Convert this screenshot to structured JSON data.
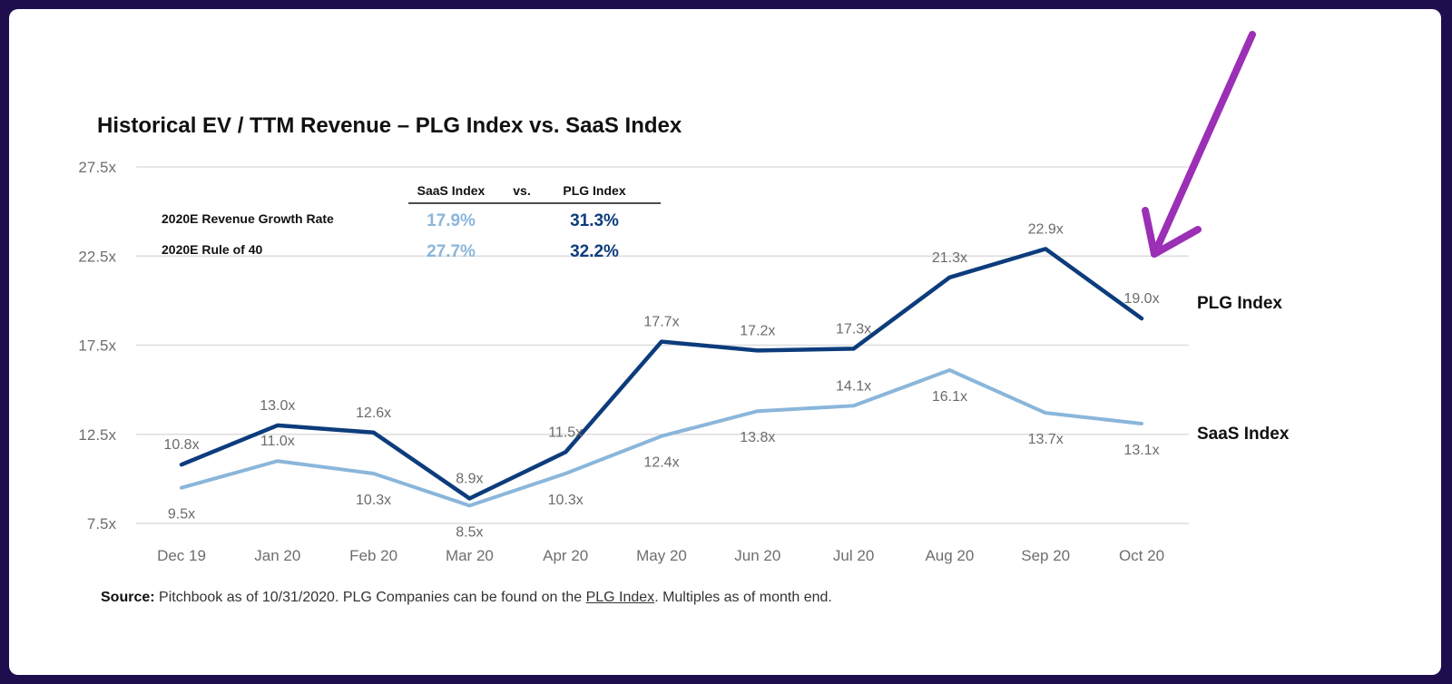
{
  "chart_data": {
    "type": "line",
    "title": "Historical EV / TTM Revenue – PLG Index vs. SaaS Index",
    "categories": [
      "Dec 19",
      "Jan 20",
      "Feb 20",
      "Mar 20",
      "Apr 20",
      "May 20",
      "Jun 20",
      "Jul 20",
      "Aug 20",
      "Sep 20",
      "Oct 20"
    ],
    "y_ticks": [
      "7.5x",
      "12.5x",
      "17.5x",
      "22.5x",
      "27.5x"
    ],
    "ylim": [
      7.5,
      27.5
    ],
    "grid": true,
    "legend": "right",
    "series": [
      {
        "name": "PLG Index",
        "color": "#0d3c7c",
        "values": [
          10.8,
          13.0,
          12.6,
          8.9,
          11.5,
          17.7,
          17.2,
          17.3,
          21.3,
          22.9,
          19.0
        ],
        "labels": [
          "10.8x",
          "13.0x",
          "12.6x",
          "8.9x",
          "11.5x",
          "17.7x",
          "17.2x",
          "17.3x",
          "21.3x",
          "22.9x",
          "19.0x"
        ]
      },
      {
        "name": "SaaS Index",
        "color": "#8ab6da",
        "values": [
          9.5,
          11.0,
          10.3,
          8.5,
          10.3,
          12.4,
          13.8,
          14.1,
          16.1,
          13.7,
          13.1
        ],
        "labels": [
          "9.5x",
          "11.0x",
          "10.3x",
          "8.5x",
          "10.3x",
          "12.4x",
          "13.8x",
          "14.1x",
          "16.1x",
          "13.7x",
          "13.1x"
        ]
      }
    ],
    "table": {
      "headers": [
        "SaaS Index",
        "vs.",
        "PLG Index"
      ],
      "rows": [
        {
          "label": "2020E Revenue Growth Rate",
          "saas": "17.9%",
          "plg": "31.3%"
        },
        {
          "label": "2020E Rule of 40",
          "saas": "27.7%",
          "plg": "32.2%"
        }
      ]
    }
  },
  "annotation": {
    "arrow_color": "#9b2fb5"
  },
  "source": {
    "bold": "Source:",
    "pre": " Pitchbook as of 10/31/2020. PLG Companies can be found on the ",
    "link": "PLG Index",
    "post": ". Multiples as of month end."
  },
  "colors": {
    "background": "#1f0e4e",
    "panel": "#ffffff",
    "grid": "#dddddd"
  }
}
